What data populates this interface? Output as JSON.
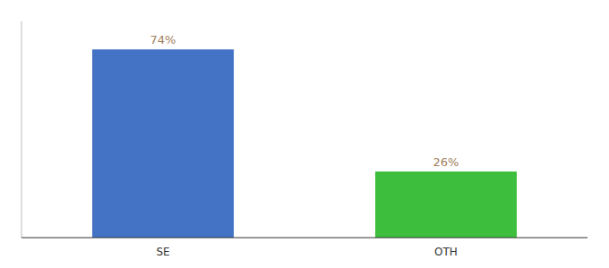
{
  "chart_data": {
    "type": "bar",
    "categories": [
      "SE",
      "OTH"
    ],
    "values": [
      74,
      26
    ],
    "value_labels": [
      "74%",
      "26%"
    ],
    "colors": [
      "#4472c4",
      "#3dbf3d"
    ],
    "ylim": [
      0,
      85
    ],
    "data_labels": true,
    "tick_labels": "x"
  }
}
